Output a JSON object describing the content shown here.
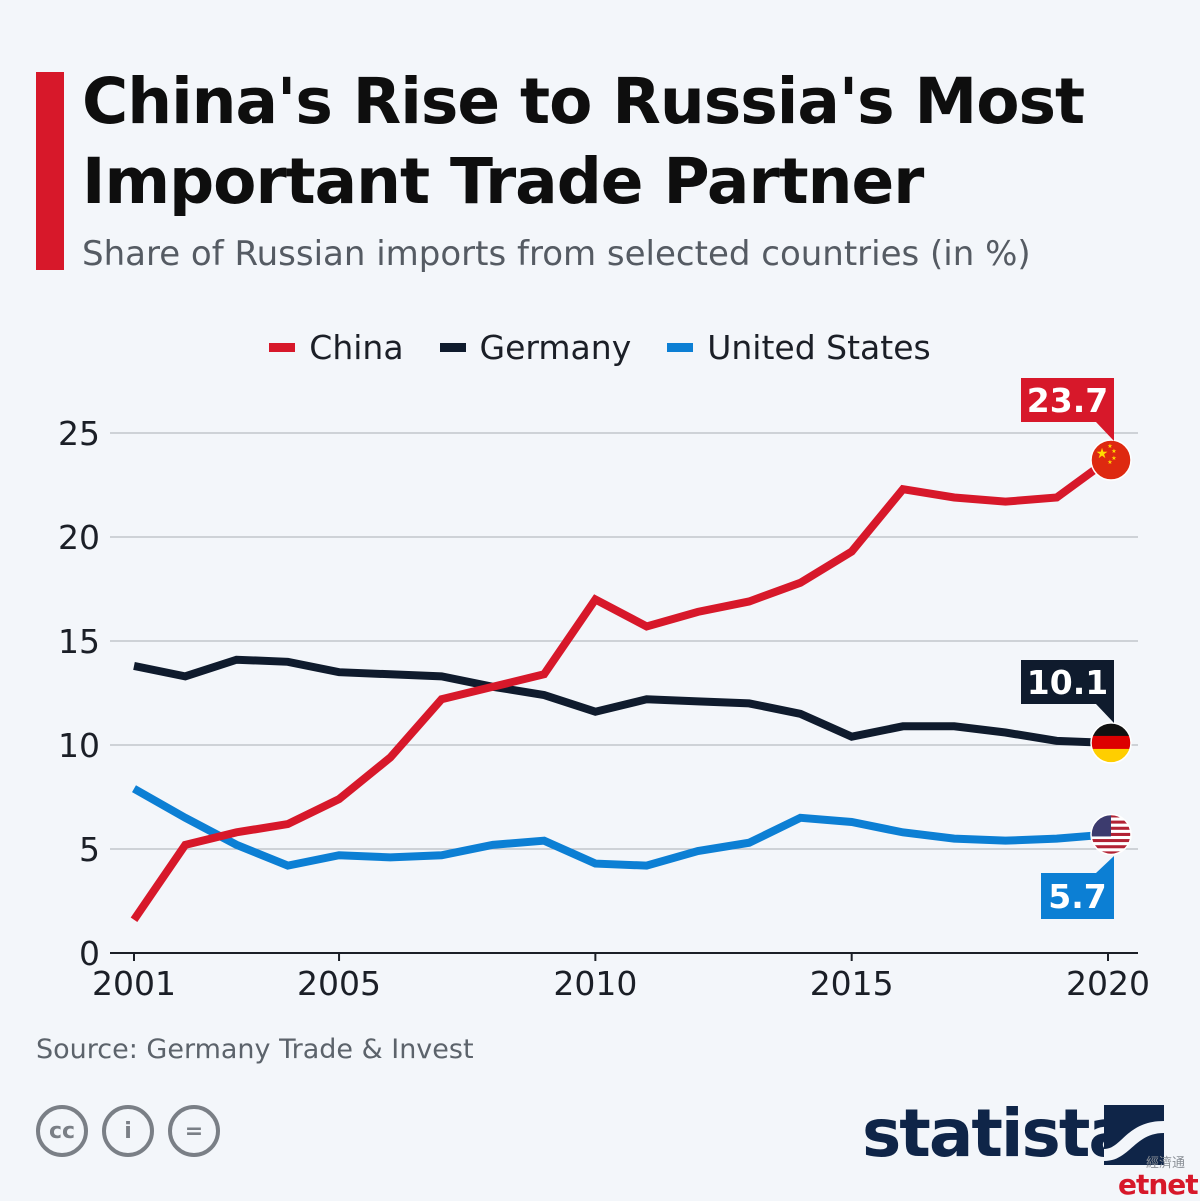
{
  "title": "China's Rise to Russia's Most Important Trade Partner",
  "subtitle": "Share of Russian imports from selected countries (in %)",
  "source": "Source: Germany Trade & Invest",
  "brand": "statista",
  "watermark": "etnet",
  "watermark_cn": "經濟通",
  "license_icons": [
    "cc",
    "i",
    "="
  ],
  "chart_data": {
    "type": "line",
    "x": [
      2001,
      2002,
      2003,
      2004,
      2005,
      2006,
      2007,
      2008,
      2009,
      2010,
      2011,
      2012,
      2013,
      2014,
      2015,
      2016,
      2017,
      2018,
      2019,
      2020
    ],
    "x_ticks": [
      "2001",
      "2005",
      "2010",
      "2015",
      "2020"
    ],
    "y_ticks": [
      "0",
      "5",
      "10",
      "15",
      "20",
      "25"
    ],
    "xlim": [
      2001,
      2020
    ],
    "ylim": [
      0,
      25
    ],
    "grid": true,
    "legend_position": "top-center",
    "series": [
      {
        "name": "China",
        "color": "#d7182a",
        "values": [
          1.6,
          5.2,
          5.8,
          6.2,
          7.4,
          9.4,
          12.2,
          12.8,
          13.4,
          17.0,
          15.7,
          16.4,
          16.9,
          17.8,
          19.3,
          22.3,
          21.9,
          21.7,
          21.9,
          23.7
        ],
        "end_label": "23.7",
        "flag": "china-flag"
      },
      {
        "name": "Germany",
        "color": "#0f1b2d",
        "values": [
          13.8,
          13.3,
          14.1,
          14.0,
          13.5,
          13.4,
          13.3,
          12.8,
          12.4,
          11.6,
          12.2,
          12.1,
          12.0,
          11.5,
          10.4,
          10.9,
          10.9,
          10.6,
          10.2,
          10.1
        ],
        "end_label": "10.1",
        "flag": "germany-flag"
      },
      {
        "name": "United States",
        "color": "#0c7fd4",
        "values": [
          7.9,
          6.5,
          5.2,
          4.2,
          4.7,
          4.6,
          4.7,
          5.2,
          5.4,
          4.3,
          4.2,
          4.9,
          5.3,
          6.5,
          6.3,
          5.8,
          5.5,
          5.4,
          5.5,
          5.7
        ],
        "end_label": "5.7",
        "flag": "us-flag"
      }
    ]
  }
}
